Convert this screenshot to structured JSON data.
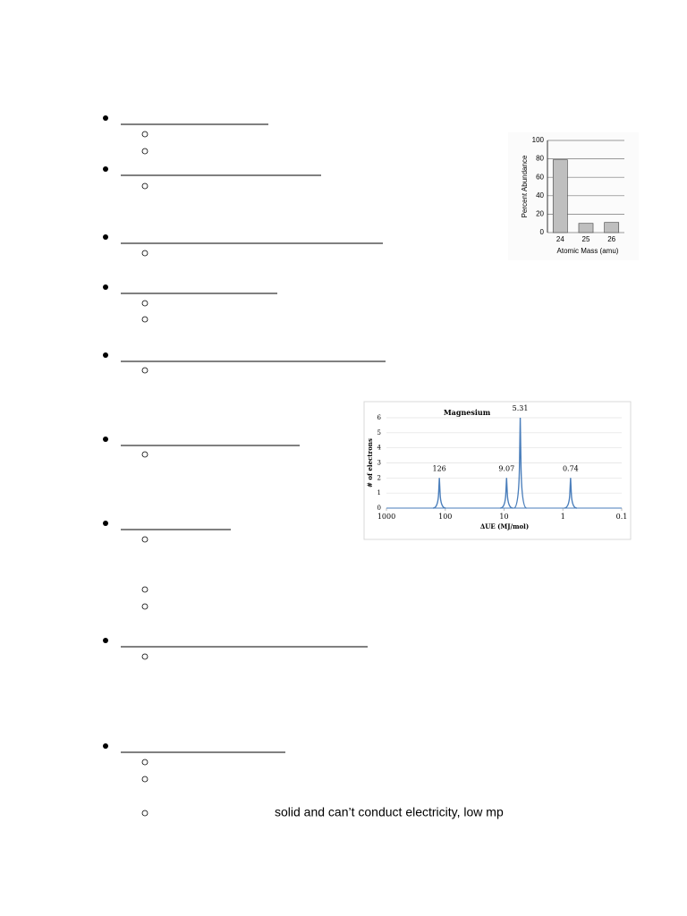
{
  "document": {
    "note": "solid and can’t conduct electricity, low mp"
  },
  "chart_data": [
    {
      "type": "bar",
      "ylabel": "Percent Abundance",
      "xlabel": "Atomic Mass (amu)",
      "categories": [
        "24",
        "25",
        "26"
      ],
      "values": [
        79,
        10,
        11
      ],
      "color": "#bfbfbf",
      "ylim": [
        0,
        100
      ],
      "yticks": [
        0,
        20,
        40,
        60,
        80,
        100
      ],
      "grid": true
    },
    {
      "type": "line",
      "title": "Magnesium",
      "ylabel": "# of electrons",
      "xlabel": "ΔUE (MJ/mol)",
      "x": [
        126,
        9.07,
        5.31,
        0.74
      ],
      "values": [
        2,
        2,
        6,
        2
      ],
      "color": "#4a7ebb",
      "xlim": [
        1000,
        0.1
      ],
      "xticks": [
        1000,
        100,
        10,
        1,
        0.1
      ],
      "xlog": true,
      "ylim": [
        0,
        6
      ],
      "yticks": [
        0,
        1,
        2,
        3,
        4,
        5,
        6
      ],
      "grid": true
    }
  ]
}
